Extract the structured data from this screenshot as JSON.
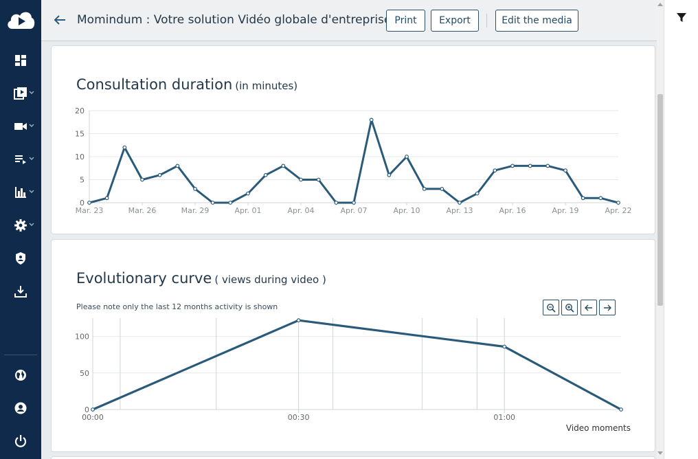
{
  "header": {
    "title": "Momindum : Votre solution Vidéo globale d'entreprise",
    "print_label": "Print",
    "export_label": "Export",
    "edit_label": "Edit the media"
  },
  "sidebar": {
    "items": [
      {
        "icon": "dashboard-icon",
        "has_caret": false
      },
      {
        "icon": "media-library-icon",
        "has_caret": true
      },
      {
        "icon": "video-camera-icon",
        "has_caret": true
      },
      {
        "icon": "playlist-icon",
        "has_caret": true
      },
      {
        "icon": "statistics-icon",
        "has_caret": true
      },
      {
        "icon": "settings-icon",
        "has_caret": true
      },
      {
        "icon": "security-shield-icon",
        "has_caret": false
      },
      {
        "icon": "download-icon",
        "has_caret": false
      }
    ],
    "bottom_items": [
      {
        "icon": "globe-icon"
      },
      {
        "icon": "user-account-icon"
      },
      {
        "icon": "power-icon"
      }
    ]
  },
  "colors": {
    "sidebar_bg": "#0f2a4a",
    "line": "#2a5a7a",
    "accent": "#234a66"
  },
  "consultation": {
    "title": "Consultation duration",
    "subtitle": "(in minutes)"
  },
  "evolution": {
    "title": "Evolutionary curve",
    "subtitle": "( views during video )",
    "note": "Please note only the last 12 months activity is shown",
    "x_axis_label": "Video moments",
    "controls": [
      "zoom-out-icon",
      "zoom-in-icon",
      "arrow-left-icon",
      "arrow-right-icon"
    ]
  },
  "chart_data": [
    {
      "type": "line",
      "title": "Consultation duration",
      "subtitle": "(in minutes)",
      "ylim": [
        0,
        20
      ],
      "yticks": [
        "0",
        "5",
        "10",
        "15",
        "20"
      ],
      "x_tick_labels": [
        "Mar. 23",
        "Mar. 26",
        "Mar. 29",
        "Apr. 01",
        "Apr. 04",
        "Apr. 07",
        "Apr. 10",
        "Apr. 13",
        "Apr. 16",
        "Apr. 19",
        "Apr. 22"
      ],
      "x_tick_every": 3,
      "values": [
        0,
        1,
        12,
        5,
        6,
        8,
        3,
        0,
        0,
        2,
        6,
        8,
        5,
        5,
        0,
        0,
        18,
        6,
        10,
        3,
        3,
        0,
        2,
        7,
        8,
        8,
        8,
        7,
        1,
        1,
        0
      ],
      "grid": true
    },
    {
      "type": "line",
      "title": "Evolutionary curve",
      "subtitle": "( views during video )",
      "xlabel": "Video moments",
      "ylim": [
        0,
        125
      ],
      "yticks": [
        "0",
        "50",
        "100"
      ],
      "x_tick_labels": [
        "00:00",
        "00:30",
        "01:00"
      ],
      "x_tick_seconds": [
        0,
        30,
        60
      ],
      "xlim_seconds": [
        0,
        77
      ],
      "vertical_markers_seconds": [
        4,
        18,
        35,
        48,
        56
      ],
      "points": [
        {
          "t": 0,
          "v": 0
        },
        {
          "t": 30,
          "v": 122
        },
        {
          "t": 60,
          "v": 86
        },
        {
          "t": 77,
          "v": 0
        }
      ],
      "grid": true
    }
  ]
}
